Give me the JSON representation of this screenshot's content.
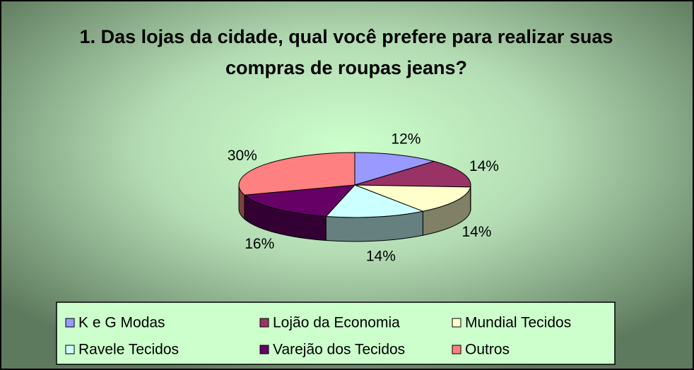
{
  "chart_data": {
    "type": "pie3d",
    "title": "1. Das lojas da cidade, qual você prefere para realizar suas compras de roupas jeans?",
    "categories": [
      "K e G Modas",
      "Lojão da Economia",
      "Mundial Tecidos",
      "Ravele Tecidos",
      "Varejão dos Tecidos",
      "Outros"
    ],
    "values": [
      12,
      14,
      14,
      14,
      16,
      30
    ],
    "value_labels": [
      "12%",
      "14%",
      "14%",
      "14%",
      "16%",
      "30%"
    ],
    "colors": [
      "#9999ff",
      "#993366",
      "#ffffcc",
      "#ccffff",
      "#660066",
      "#ff8080"
    ],
    "legend": "bottom"
  }
}
